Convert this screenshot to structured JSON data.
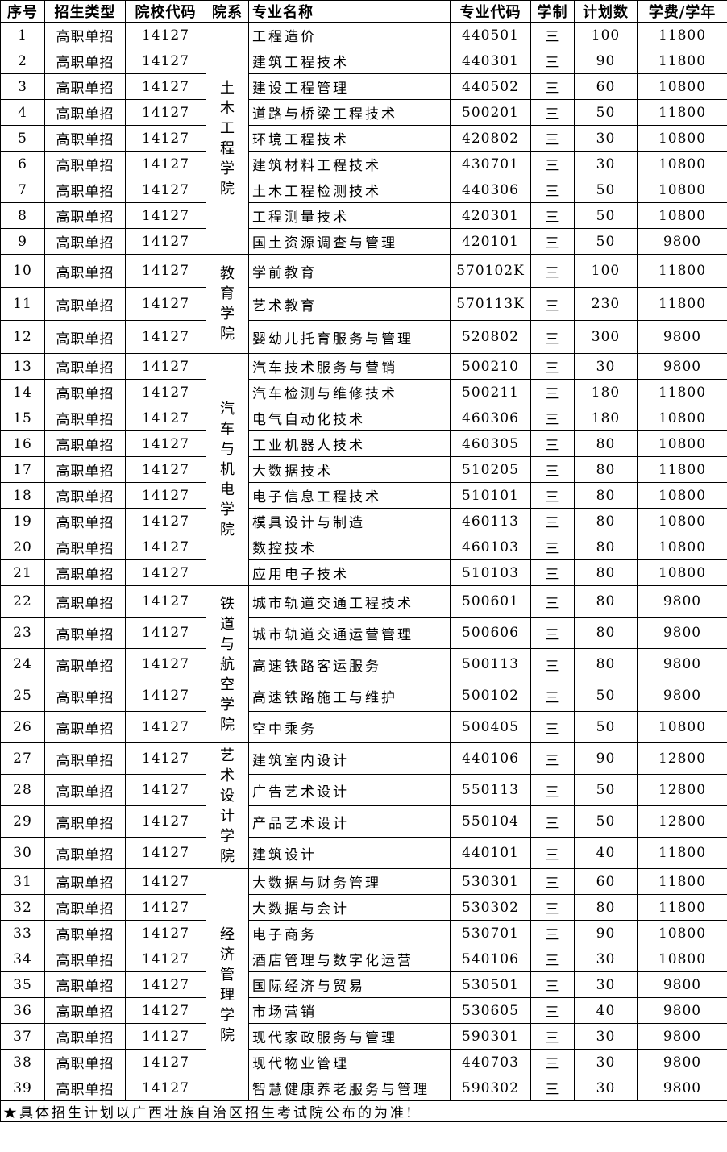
{
  "headers": [
    "序号",
    "招生类型",
    "院校代码",
    "院系",
    "专业名称",
    "专业代码",
    "学制",
    "计划数",
    "学费/学年"
  ],
  "groups": [
    {
      "dept": "土木工程学院",
      "rows": [
        [
          "1",
          "高职单招",
          "14127",
          "工程造价",
          "440501",
          "三",
          "100",
          "11800"
        ],
        [
          "2",
          "高职单招",
          "14127",
          "建筑工程技术",
          "440301",
          "三",
          "90",
          "11800"
        ],
        [
          "3",
          "高职单招",
          "14127",
          "建设工程管理",
          "440502",
          "三",
          "60",
          "10800"
        ],
        [
          "4",
          "高职单招",
          "14127",
          "道路与桥梁工程技术",
          "500201",
          "三",
          "50",
          "11800"
        ],
        [
          "5",
          "高职单招",
          "14127",
          "环境工程技术",
          "420802",
          "三",
          "30",
          "10800"
        ],
        [
          "6",
          "高职单招",
          "14127",
          "建筑材料工程技术",
          "430701",
          "三",
          "30",
          "10800"
        ],
        [
          "7",
          "高职单招",
          "14127",
          "土木工程检测技术",
          "440306",
          "三",
          "50",
          "10800"
        ],
        [
          "8",
          "高职单招",
          "14127",
          "工程测量技术",
          "420301",
          "三",
          "50",
          "10800"
        ],
        [
          "9",
          "高职单招",
          "14127",
          "国土资源调查与管理",
          "420101",
          "三",
          "50",
          "9800"
        ]
      ]
    },
    {
      "dept": "教育学院",
      "rows": [
        [
          "10",
          "高职单招",
          "14127",
          "学前教育",
          "570102K",
          "三",
          "100",
          "11800"
        ],
        [
          "11",
          "高职单招",
          "14127",
          "艺术教育",
          "570113K",
          "三",
          "230",
          "11800"
        ],
        [
          "12",
          "高职单招",
          "14127",
          "婴幼儿托育服务与管理",
          "520802",
          "三",
          "300",
          "9800"
        ]
      ]
    },
    {
      "dept": "汽车与机电学院",
      "rows": [
        [
          "13",
          "高职单招",
          "14127",
          "汽车技术服务与营销",
          "500210",
          "三",
          "30",
          "9800"
        ],
        [
          "14",
          "高职单招",
          "14127",
          "汽车检测与维修技术",
          "500211",
          "三",
          "180",
          "11800"
        ],
        [
          "15",
          "高职单招",
          "14127",
          "电气自动化技术",
          "460306",
          "三",
          "180",
          "10800"
        ],
        [
          "16",
          "高职单招",
          "14127",
          "工业机器人技术",
          "460305",
          "三",
          "80",
          "10800"
        ],
        [
          "17",
          "高职单招",
          "14127",
          "大数据技术",
          "510205",
          "三",
          "80",
          "11800"
        ],
        [
          "18",
          "高职单招",
          "14127",
          "电子信息工程技术",
          "510101",
          "三",
          "80",
          "10800"
        ],
        [
          "19",
          "高职单招",
          "14127",
          "模具设计与制造",
          "460113",
          "三",
          "80",
          "10800"
        ],
        [
          "20",
          "高职单招",
          "14127",
          "数控技术",
          "460103",
          "三",
          "80",
          "10800"
        ],
        [
          "21",
          "高职单招",
          "14127",
          "应用电子技术",
          "510103",
          "三",
          "80",
          "10800"
        ]
      ]
    },
    {
      "dept": "铁道与航空学院",
      "rows": [
        [
          "22",
          "高职单招",
          "14127",
          "城市轨道交通工程技术",
          "500601",
          "三",
          "80",
          "9800"
        ],
        [
          "23",
          "高职单招",
          "14127",
          "城市轨道交通运营管理",
          "500606",
          "三",
          "80",
          "9800"
        ],
        [
          "24",
          "高职单招",
          "14127",
          "高速铁路客运服务",
          "500113",
          "三",
          "80",
          "9800"
        ],
        [
          "25",
          "高职单招",
          "14127",
          "高速铁路施工与维护",
          "500102",
          "三",
          "50",
          "9800"
        ],
        [
          "26",
          "高职单招",
          "14127",
          "空中乘务",
          "500405",
          "三",
          "50",
          "10800"
        ]
      ]
    },
    {
      "dept": "艺术设计学院",
      "rows": [
        [
          "27",
          "高职单招",
          "14127",
          "建筑室内设计",
          "440106",
          "三",
          "90",
          "12800"
        ],
        [
          "28",
          "高职单招",
          "14127",
          "广告艺术设计",
          "550113",
          "三",
          "50",
          "12800"
        ],
        [
          "29",
          "高职单招",
          "14127",
          "产品艺术设计",
          "550104",
          "三",
          "50",
          "12800"
        ],
        [
          "30",
          "高职单招",
          "14127",
          "建筑设计",
          "440101",
          "三",
          "40",
          "11800"
        ]
      ]
    },
    {
      "dept": "经济管理学院",
      "rows": [
        [
          "31",
          "高职单招",
          "14127",
          "大数据与财务管理",
          "530301",
          "三",
          "60",
          "11800"
        ],
        [
          "32",
          "高职单招",
          "14127",
          "大数据与会计",
          "530302",
          "三",
          "80",
          "11800"
        ],
        [
          "33",
          "高职单招",
          "14127",
          "电子商务",
          "530701",
          "三",
          "90",
          "10800"
        ],
        [
          "34",
          "高职单招",
          "14127",
          "酒店管理与数字化运营",
          "540106",
          "三",
          "30",
          "10800"
        ],
        [
          "35",
          "高职单招",
          "14127",
          "国际经济与贸易",
          "530501",
          "三",
          "30",
          "9800"
        ],
        [
          "36",
          "高职单招",
          "14127",
          "市场营销",
          "530605",
          "三",
          "40",
          "9800"
        ],
        [
          "37",
          "高职单招",
          "14127",
          "现代家政服务与管理",
          "590301",
          "三",
          "30",
          "9800"
        ],
        [
          "38",
          "高职单招",
          "14127",
          "现代物业管理",
          "440703",
          "三",
          "30",
          "9800"
        ],
        [
          "39",
          "高职单招",
          "14127",
          "智慧健康养老服务与管理",
          "590302",
          "三",
          "30",
          "9800"
        ]
      ]
    }
  ],
  "footer": "★具体招生计划以广西壮族自治区招生考试院公布的为准!"
}
